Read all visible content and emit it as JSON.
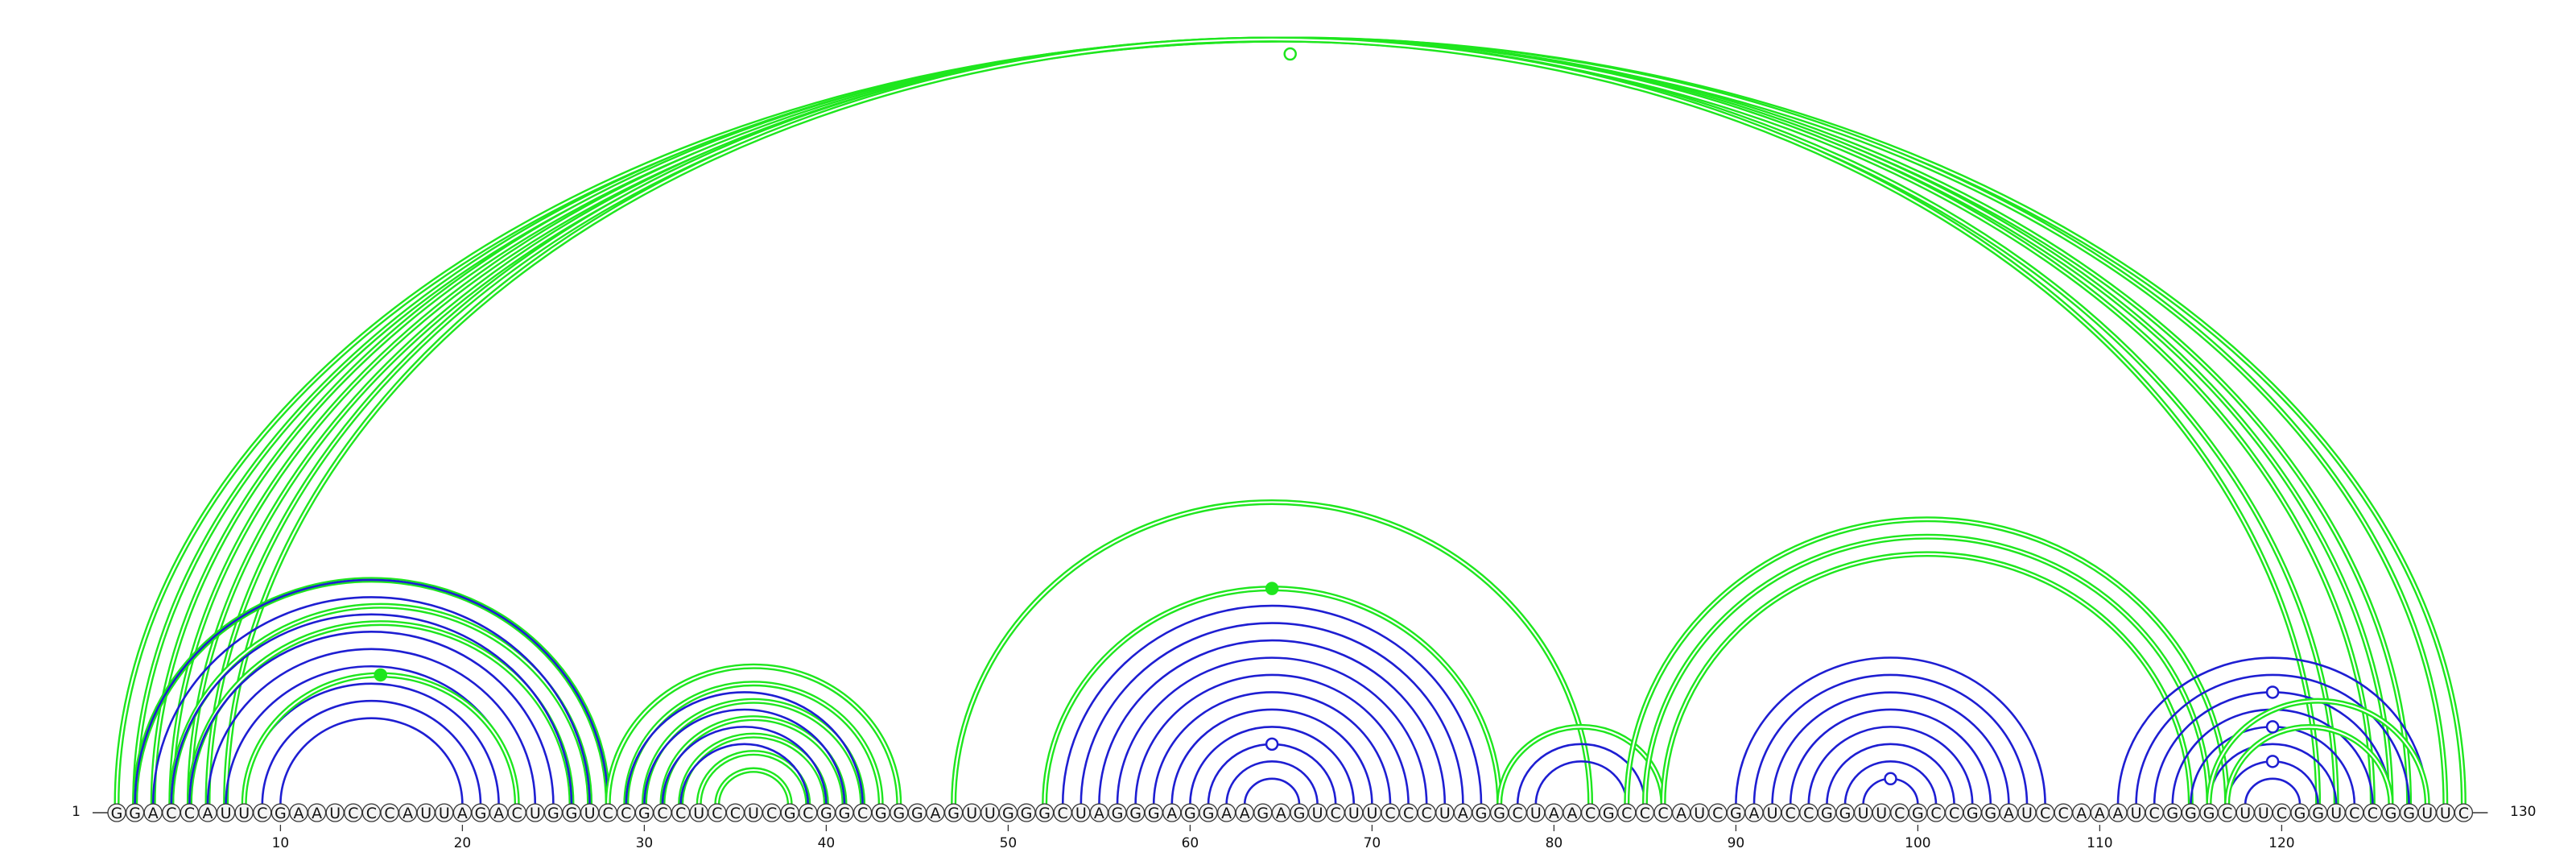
{
  "sequence": "GGACCAUUCGAAUCCCAUUAGACUGGUCCGCCUCCUCGCGGCGGGAGUUGGGCUAGGGAGGAAGAGUCUUCCCUAGGCUAACGCCCAUCGAUCCGGUUCGCCGGAUCCAAAUCGGGCUUCGGUCCGGUUC",
  "start_label": "1",
  "end_label": "130",
  "ticks": [
    "10",
    "20",
    "30",
    "40",
    "50",
    "60",
    "70",
    "80",
    "90",
    "100",
    "110",
    "120"
  ],
  "colors": {
    "green": "#1ee61e",
    "blue": "#1e1ed2",
    "text": "#111111"
  },
  "arc_groups": [
    {
      "color": "green",
      "helix": [
        [
          1,
          130
        ],
        [
          2,
          129
        ],
        [
          3,
          127
        ],
        [
          4,
          126
        ],
        [
          5,
          125
        ],
        [
          6,
          123
        ],
        [
          7,
          122
        ]
      ],
      "offset": 0,
      "double": true
    },
    {
      "color": "green",
      "helix": [
        [
          2,
          28
        ],
        [
          4,
          27
        ],
        [
          5,
          26
        ]
      ],
      "double": true
    },
    {
      "color": "blue",
      "helix": [
        [
          2,
          28
        ],
        [
          3,
          27
        ],
        [
          4,
          26
        ],
        [
          5,
          25
        ],
        [
          6,
          24
        ],
        [
          7,
          23
        ],
        [
          8,
          22
        ],
        [
          9,
          21
        ],
        [
          10,
          20
        ]
      ]
    },
    {
      "color": "green",
      "helix": [
        [
          8,
          23
        ]
      ],
      "double": true
    },
    {
      "color": "green",
      "helix": [
        [
          28,
          44
        ],
        [
          29,
          43
        ],
        [
          30,
          42
        ],
        [
          31,
          41
        ],
        [
          32,
          40
        ],
        [
          33,
          39
        ],
        [
          34,
          38
        ]
      ],
      "double": true
    },
    {
      "color": "blue",
      "helix": [
        [
          29,
          42
        ],
        [
          30,
          41
        ],
        [
          31,
          40
        ],
        [
          32,
          39
        ]
      ]
    },
    {
      "color": "green",
      "helix": [
        [
          47,
          82
        ]
      ],
      "double": true
    },
    {
      "color": "green",
      "helix": [
        [
          52,
          77
        ]
      ],
      "double": true
    },
    {
      "color": "blue",
      "helix": [
        [
          53,
          76
        ],
        [
          54,
          75
        ],
        [
          55,
          74
        ],
        [
          56,
          73
        ],
        [
          57,
          72
        ],
        [
          58,
          71
        ],
        [
          59,
          70
        ],
        [
          60,
          69
        ],
        [
          61,
          68
        ],
        [
          62,
          67
        ],
        [
          63,
          66
        ]
      ]
    },
    {
      "color": "green",
      "helix": [
        [
          77,
          86
        ]
      ],
      "double": true
    },
    {
      "color": "blue",
      "helix": [
        [
          78,
          85
        ],
        [
          79,
          84
        ]
      ]
    },
    {
      "color": "green",
      "helix": [
        [
          84,
          117
        ],
        [
          85,
          116
        ],
        [
          86,
          115
        ]
      ],
      "double": true
    },
    {
      "color": "blue",
      "helix": [
        [
          90,
          107
        ],
        [
          91,
          106
        ],
        [
          92,
          105
        ],
        [
          93,
          104
        ],
        [
          94,
          103
        ],
        [
          95,
          102
        ],
        [
          96,
          101
        ],
        [
          97,
          100
        ]
      ]
    },
    {
      "color": "blue",
      "helix": [
        [
          111,
          128
        ],
        [
          112,
          127
        ],
        [
          113,
          126
        ],
        [
          114,
          125
        ],
        [
          115,
          124
        ],
        [
          116,
          123
        ],
        [
          117,
          122
        ],
        [
          118,
          121
        ]
      ]
    },
    {
      "color": "green",
      "helix": [
        [
          116,
          128
        ],
        [
          117,
          126
        ]
      ],
      "double": true
    }
  ],
  "markers": [
    {
      "color": "green",
      "filled": false,
      "pair": [
        1,
        130
      ],
      "level": 1
    },
    {
      "color": "green",
      "filled": true,
      "pair": [
        8,
        23
      ]
    },
    {
      "color": "green",
      "filled": true,
      "pair": [
        52,
        77
      ]
    },
    {
      "color": "blue",
      "filled": false,
      "pair": [
        61,
        68
      ]
    },
    {
      "color": "blue",
      "filled": false,
      "pair": [
        97,
        100
      ]
    },
    {
      "color": "blue",
      "filled": false,
      "pair": [
        113,
        126
      ]
    },
    {
      "color": "blue",
      "filled": false,
      "pair": [
        115,
        124
      ]
    },
    {
      "color": "blue",
      "filled": false,
      "pair": [
        117,
        122
      ]
    }
  ]
}
